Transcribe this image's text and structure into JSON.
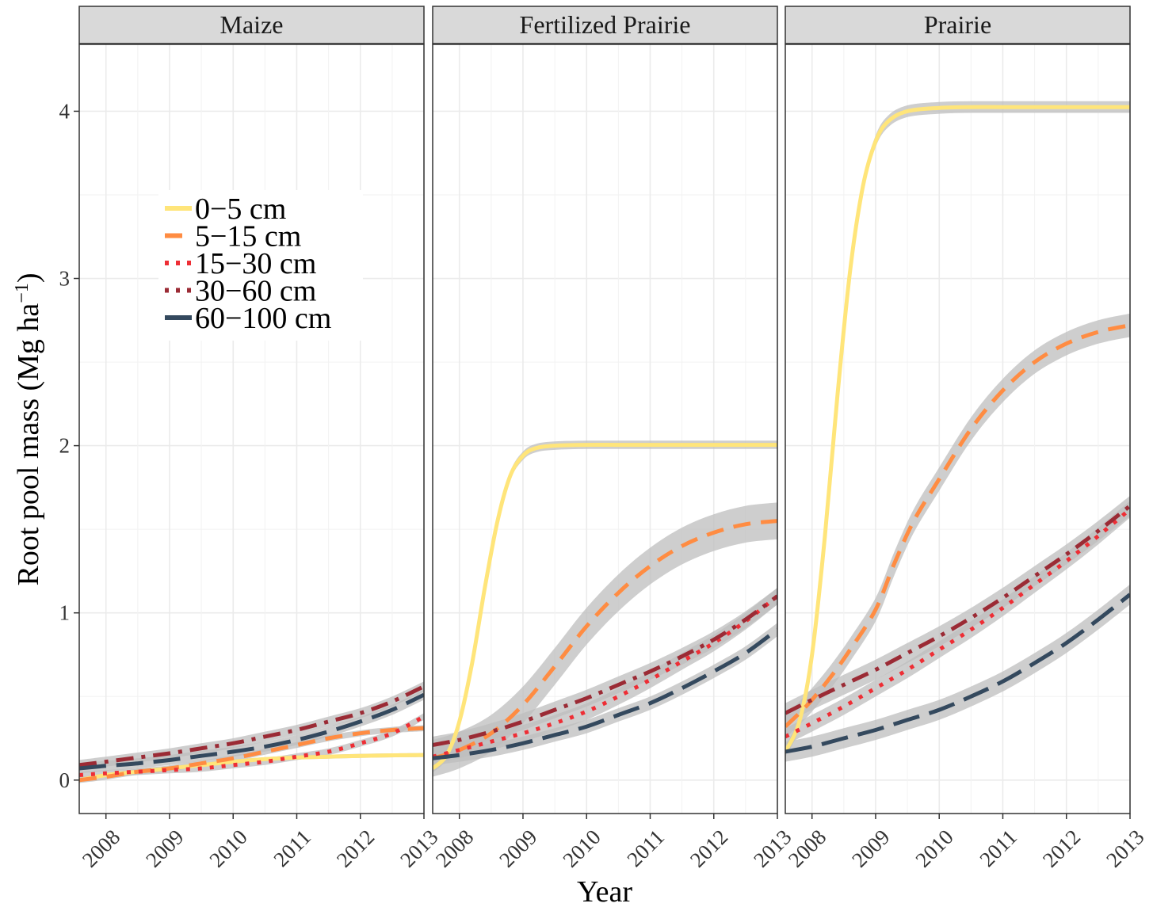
{
  "chart_data": {
    "type": "line",
    "xlabel": "Year",
    "ylabel": "Root pool mass (Mg ha",
    "ylabel_sup": "−1",
    "ylabel_close": ")",
    "xlim": [
      2007.58,
      2013.0
    ],
    "ylim": [
      -0.2,
      4.4
    ],
    "x_ticks": [
      2008,
      2009,
      2010,
      2011,
      2012,
      2013
    ],
    "y_ticks": [
      0,
      1,
      2,
      3,
      4
    ],
    "grid": true,
    "legend_position": "inside-top-left-first-panel",
    "colors": {
      "0-5": "#FFE57A",
      "5-15": "#FF8C42",
      "15-30": "#EE2E35",
      "30-60": "#9B2B35",
      "60-100": "#34495E",
      "ribbon": "#BEBEBE",
      "strip_bg": "#D9D9D9"
    },
    "legend": [
      {
        "key": "0-5",
        "label": "0−5 cm",
        "dash": "solid"
      },
      {
        "key": "5-15",
        "label": "5−15 cm",
        "dash": "dashed"
      },
      {
        "key": "15-30",
        "label": "15−30 cm",
        "dash": "dotted"
      },
      {
        "key": "30-60",
        "label": "30−60 cm",
        "dash": "dotdash"
      },
      {
        "key": "60-100",
        "label": "60−100 cm",
        "dash": "longdash"
      }
    ],
    "panels": [
      {
        "title": "Maize",
        "series": [
          {
            "key": "0-5",
            "x": [
              2007.58,
              2008,
              2008.5,
              2009,
              2009.5,
              2010,
              2010.5,
              2011,
              2011.5,
              2012,
              2012.5,
              2013
            ],
            "y": [
              0.0,
              0.03,
              0.05,
              0.07,
              0.09,
              0.11,
              0.125,
              0.135,
              0.14,
              0.145,
              0.148,
              0.15
            ],
            "band": 0.012
          },
          {
            "key": "5-15",
            "x": [
              2007.58,
              2008,
              2008.5,
              2009,
              2009.5,
              2010,
              2010.5,
              2011,
              2011.5,
              2012,
              2012.5,
              2013
            ],
            "y": [
              0.0,
              0.02,
              0.05,
              0.07,
              0.1,
              0.13,
              0.17,
              0.21,
              0.25,
              0.28,
              0.3,
              0.31
            ],
            "band": 0.018
          },
          {
            "key": "15-30",
            "x": [
              2007.58,
              2008,
              2008.5,
              2009,
              2009.5,
              2010,
              2010.5,
              2011,
              2011.5,
              2012,
              2012.5,
              2013
            ],
            "y": [
              0.03,
              0.04,
              0.05,
              0.06,
              0.07,
              0.09,
              0.11,
              0.14,
              0.17,
              0.22,
              0.28,
              0.38
            ],
            "band": 0.02
          },
          {
            "key": "30-60",
            "x": [
              2007.58,
              2008,
              2008.5,
              2009,
              2009.5,
              2010,
              2010.5,
              2011,
              2011.5,
              2012,
              2012.5,
              2013
            ],
            "y": [
              0.09,
              0.11,
              0.135,
              0.16,
              0.19,
              0.22,
              0.26,
              0.3,
              0.35,
              0.4,
              0.47,
              0.56
            ],
            "band": 0.03
          },
          {
            "key": "60-100",
            "x": [
              2007.58,
              2008,
              2008.5,
              2009,
              2009.5,
              2010,
              2010.5,
              2011,
              2011.5,
              2012,
              2012.5,
              2013
            ],
            "y": [
              0.07,
              0.085,
              0.1,
              0.12,
              0.145,
              0.17,
              0.2,
              0.24,
              0.29,
              0.35,
              0.42,
              0.51
            ],
            "band": 0.03
          }
        ]
      },
      {
        "title": "Fertilized Prairie",
        "series": [
          {
            "key": "0-5",
            "x": [
              2007.58,
              2007.8,
              2008,
              2008.2,
              2008.4,
              2008.6,
              2008.8,
              2009,
              2009.2,
              2009.5,
              2010,
              2010.5,
              2011,
              2012,
              2013
            ],
            "y": [
              0.07,
              0.15,
              0.35,
              0.7,
              1.15,
              1.55,
              1.82,
              1.94,
              1.985,
              2.0,
              2.005,
              2.005,
              2.005,
              2.005,
              2.005
            ],
            "band": 0.025
          },
          {
            "key": "5-15",
            "x": [
              2007.58,
              2008,
              2008.5,
              2009,
              2009.5,
              2010,
              2010.5,
              2011,
              2011.5,
              2012,
              2012.5,
              2013
            ],
            "y": [
              0.13,
              0.18,
              0.28,
              0.45,
              0.68,
              0.92,
              1.12,
              1.28,
              1.4,
              1.48,
              1.53,
              1.55
            ],
            "band": 0.11
          },
          {
            "key": "15-30",
            "x": [
              2007.58,
              2008,
              2008.5,
              2009,
              2009.5,
              2010,
              2010.5,
              2011,
              2011.5,
              2012,
              2012.5,
              2013
            ],
            "y": [
              0.14,
              0.18,
              0.23,
              0.28,
              0.34,
              0.41,
              0.5,
              0.6,
              0.71,
              0.82,
              0.95,
              1.1
            ],
            "band": 0.05
          },
          {
            "key": "30-60",
            "x": [
              2007.58,
              2008,
              2008.5,
              2009,
              2009.5,
              2010,
              2010.5,
              2011,
              2011.5,
              2012,
              2012.5,
              2013
            ],
            "y": [
              0.21,
              0.24,
              0.29,
              0.35,
              0.42,
              0.49,
              0.57,
              0.65,
              0.74,
              0.84,
              0.96,
              1.1
            ],
            "band": 0.05
          },
          {
            "key": "60-100",
            "x": [
              2007.58,
              2008,
              2008.5,
              2009,
              2009.5,
              2010,
              2010.5,
              2011,
              2011.5,
              2012,
              2012.5,
              2013
            ],
            "y": [
              0.13,
              0.15,
              0.18,
              0.22,
              0.27,
              0.32,
              0.39,
              0.46,
              0.55,
              0.65,
              0.76,
              0.9
            ],
            "band": 0.04
          }
        ]
      },
      {
        "title": "Prairie",
        "series": [
          {
            "key": "0-5",
            "x": [
              2007.58,
              2007.8,
              2008,
              2008.2,
              2008.4,
              2008.6,
              2008.8,
              2009,
              2009.2,
              2009.5,
              2010,
              2010.5,
              2011,
              2012,
              2013
            ],
            "y": [
              0.17,
              0.35,
              0.75,
              1.45,
              2.3,
              3.05,
              3.55,
              3.82,
              3.94,
              4.0,
              4.02,
              4.025,
              4.025,
              4.025,
              4.025
            ],
            "band": 0.035
          },
          {
            "key": "5-15",
            "x": [
              2007.58,
              2007.8,
              2008,
              2008.3,
              2008.6,
              2009,
              2009.3,
              2009.6,
              2010,
              2010.5,
              2011,
              2011.5,
              2012,
              2012.5,
              2013
            ],
            "y": [
              0.32,
              0.4,
              0.48,
              0.62,
              0.78,
              1.02,
              1.3,
              1.55,
              1.8,
              2.1,
              2.33,
              2.5,
              2.61,
              2.68,
              2.72
            ],
            "band": 0.07
          },
          {
            "key": "15-30",
            "x": [
              2007.58,
              2008,
              2008.5,
              2009,
              2009.5,
              2010,
              2010.5,
              2011,
              2011.5,
              2012,
              2012.5,
              2013
            ],
            "y": [
              0.26,
              0.34,
              0.44,
              0.55,
              0.66,
              0.78,
              0.9,
              1.03,
              1.17,
              1.31,
              1.46,
              1.62
            ],
            "band": 0.05
          },
          {
            "key": "30-60",
            "x": [
              2007.58,
              2008,
              2008.5,
              2009,
              2009.5,
              2010,
              2010.5,
              2011,
              2011.5,
              2012,
              2012.5,
              2013
            ],
            "y": [
              0.4,
              0.48,
              0.57,
              0.66,
              0.76,
              0.86,
              0.97,
              1.09,
              1.22,
              1.35,
              1.49,
              1.64
            ],
            "band": 0.06
          },
          {
            "key": "60-100",
            "x": [
              2007.58,
              2008,
              2008.5,
              2009,
              2009.5,
              2010,
              2010.5,
              2011,
              2011.5,
              2012,
              2012.5,
              2013
            ],
            "y": [
              0.17,
              0.2,
              0.25,
              0.3,
              0.36,
              0.42,
              0.5,
              0.59,
              0.7,
              0.82,
              0.96,
              1.11
            ],
            "band": 0.06
          }
        ]
      }
    ]
  }
}
